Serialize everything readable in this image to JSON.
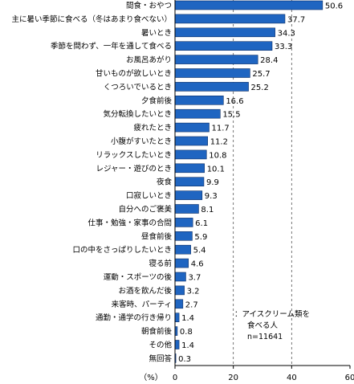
{
  "chart_data": {
    "type": "bar",
    "orientation": "horizontal",
    "categories": [
      "間食・おやつ",
      "主に暑い季節に食べる（冬はあまり食べない）",
      "暑いとき",
      "季節を問わず、一年を通して食べる",
      "お風呂あがり",
      "甘いものが欲しいとき",
      "くつろいでいるとき",
      "夕食前後",
      "気分転換したいとき",
      "疲れたとき",
      "小腹がすいたとき",
      "リラックスしたいとき",
      "レジャー・遊びのとき",
      "夜食",
      "口寂しいとき",
      "自分へのご褒美",
      "仕事・勉強・家事の合間",
      "昼食前後",
      "口の中をさっぱりしたいとき",
      "寝る前",
      "運動・スポーツの後",
      "お酒を飲んだ後",
      "来客時、パーティ",
      "通勤・通学の行き帰り",
      "朝食前後",
      "その他",
      "無回答"
    ],
    "values": [
      50.6,
      37.7,
      34.3,
      33.3,
      28.4,
      25.7,
      25.2,
      16.6,
      15.5,
      11.7,
      11.2,
      10.8,
      10.1,
      9.9,
      9.3,
      8.1,
      6.1,
      5.9,
      5.4,
      4.6,
      3.7,
      3.2,
      2.7,
      1.4,
      0.8,
      1.4,
      0.3
    ],
    "xlim": [
      0,
      60
    ],
    "xticks": [
      "0",
      "20",
      "40",
      "60"
    ],
    "unit_label": "（%）",
    "grid": "dashed vertical at 20 and 40",
    "note": [
      "：アイスクリーム類を",
      "食べる人",
      "n=11641"
    ],
    "colors": {
      "bar": "#1f65c1",
      "bar_edge": "#0d2f66",
      "axis": "#000000",
      "grid": "#555555"
    }
  }
}
